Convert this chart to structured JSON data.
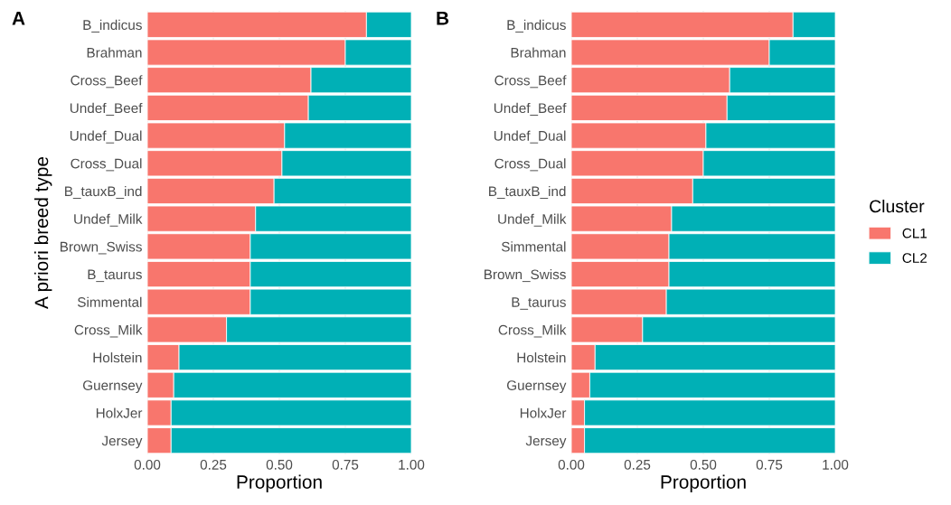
{
  "chart_data": [
    {
      "type": "bar",
      "title": "A",
      "orientation": "horizontal",
      "stacked": true,
      "xlabel": "Proportion",
      "ylabel": "A priori breed type",
      "categories": [
        "B_indicus",
        "Brahman",
        "Cross_Beef",
        "Undef_Beef",
        "Undef_Dual",
        "Cross_Dual",
        "B_tauxB_ind",
        "Undef_Milk",
        "Brown_Swiss",
        "B_taurus",
        "Simmental",
        "Cross_Milk",
        "Holstein",
        "Guernsey",
        "HolxJer",
        "Jersey"
      ],
      "series": [
        {
          "color": "#f8766d",
          "values": [
            0.83,
            0.75,
            0.62,
            0.61,
            0.52,
            0.51,
            0.48,
            0.41,
            0.39,
            0.39,
            0.39,
            0.3,
            0.12,
            0.1,
            0.09,
            0.09
          ]
        },
        {
          "color": "#00b0b6",
          "values": [
            0.17,
            0.25,
            0.38,
            0.39,
            0.48,
            0.49,
            0.52,
            0.59,
            0.61,
            0.61,
            0.61,
            0.7,
            0.88,
            0.9,
            0.91,
            0.91
          ]
        }
      ],
      "xlim": [
        0,
        1
      ],
      "xticks": [
        {
          "value": 0,
          "label": "0.00"
        },
        {
          "value": 0.25,
          "label": "0.25"
        },
        {
          "value": 0.5,
          "label": "0.50"
        },
        {
          "value": 0.75,
          "label": "0.75"
        },
        {
          "value": 1,
          "label": "1.00"
        }
      ],
      "grid": true
    },
    {
      "type": "bar",
      "title": "B",
      "orientation": "horizontal",
      "stacked": true,
      "xlabel": "Proportion",
      "legend_title": "Cluster",
      "categories": [
        "B_indicus",
        "Brahman",
        "Cross_Beef",
        "Undef_Beef",
        "Undef_Dual",
        "Cross_Dual",
        "B_tauxB_ind",
        "Undef_Milk",
        "Simmental",
        "Brown_Swiss",
        "B_taurus",
        "Cross_Milk",
        "Holstein",
        "Guernsey",
        "HolxJer",
        "Jersey"
      ],
      "series": [
        {
          "name": "CL1",
          "color": "#f8766d",
          "values": [
            0.84,
            0.75,
            0.6,
            0.59,
            0.51,
            0.5,
            0.46,
            0.38,
            0.37,
            0.37,
            0.36,
            0.27,
            0.09,
            0.07,
            0.05,
            0.05
          ]
        },
        {
          "name": "CL2",
          "color": "#00b0b6",
          "values": [
            0.16,
            0.25,
            0.4,
            0.41,
            0.49,
            0.5,
            0.54,
            0.62,
            0.63,
            0.63,
            0.64,
            0.73,
            0.91,
            0.93,
            0.95,
            0.95
          ]
        }
      ],
      "xlim": [
        0,
        1
      ],
      "xticks": [
        {
          "value": 0,
          "label": "0.00"
        },
        {
          "value": 0.25,
          "label": "0.25"
        },
        {
          "value": 0.5,
          "label": "0.50"
        },
        {
          "value": 0.75,
          "label": "0.75"
        },
        {
          "value": 1,
          "label": "1.00"
        }
      ],
      "grid": true,
      "legend": "right"
    }
  ]
}
